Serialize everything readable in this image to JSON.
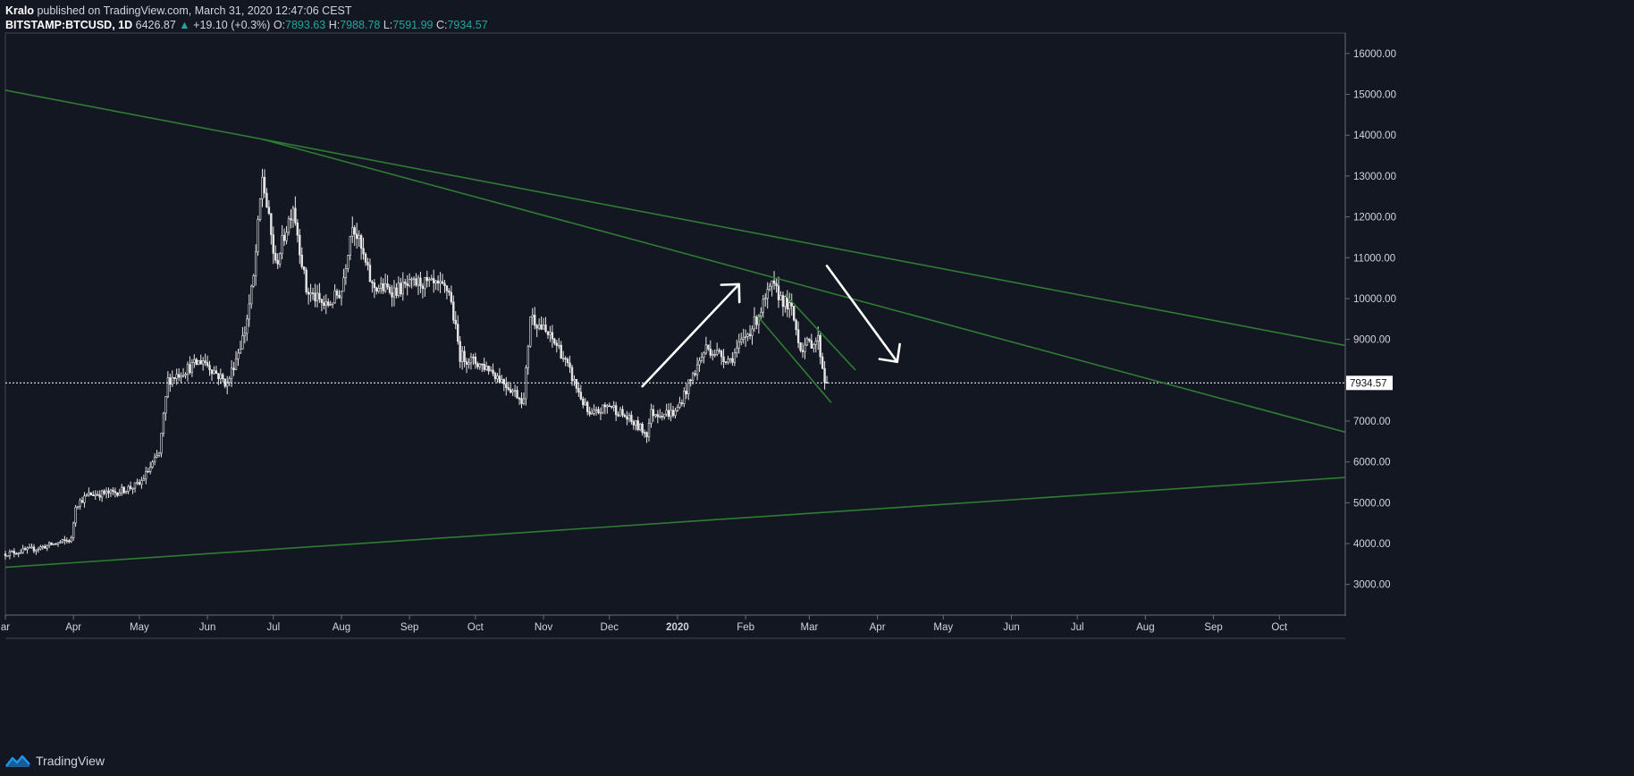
{
  "header": {
    "publisher": "Kralo",
    "published_text": "published on TradingView.com, March 31, 2020 12:47:06 CEST",
    "symbol": "BITSTAMP:BTCUSD, 1D",
    "last": "6426.87",
    "change": "+19.10 (+0.3%)",
    "o_label": "O:",
    "o": "7893.63",
    "h_label": "H:",
    "h": "7988.78",
    "l_label": "L:",
    "l": "7591.99",
    "c_label": "C:",
    "c": "7934.57"
  },
  "footer": {
    "brand": "TradingView"
  },
  "colors": {
    "background": "#131722",
    "candle": "#e6e6e6",
    "trendline": "#2e7d32",
    "arrow": "#ffffff",
    "price_line": "#ffffff",
    "accent_up": "#26a69a"
  },
  "chart_data": {
    "type": "candlestick",
    "title": "BITSTAMP:BTCUSD, 1D",
    "ylim": [
      2250,
      16500
    ],
    "yticks": [
      "16000.00",
      "15000.00",
      "14000.00",
      "13000.00",
      "12000.00",
      "11000.00",
      "10000.00",
      "9000.00",
      "8000.00",
      "7000.00",
      "6000.00",
      "5000.00",
      "4000.00",
      "3000.00"
    ],
    "ytick_values": [
      16000,
      15000,
      14000,
      13000,
      12000,
      11000,
      10000,
      9000,
      8000,
      7000,
      6000,
      5000,
      4000,
      3000
    ],
    "xlim": [
      "2019-03-01",
      "2020-10-31"
    ],
    "xticks": [
      {
        "label": "ar",
        "date": "2019-03-01"
      },
      {
        "label": "Apr",
        "date": "2019-04-01"
      },
      {
        "label": "May",
        "date": "2019-05-01"
      },
      {
        "label": "Jun",
        "date": "2019-06-01"
      },
      {
        "label": "Jul",
        "date": "2019-07-01"
      },
      {
        "label": "Aug",
        "date": "2019-08-01"
      },
      {
        "label": "Sep",
        "date": "2019-09-01"
      },
      {
        "label": "Oct",
        "date": "2019-10-01"
      },
      {
        "label": "Nov",
        "date": "2019-11-01"
      },
      {
        "label": "Dec",
        "date": "2019-12-01"
      },
      {
        "label": "2020",
        "date": "2020-01-01",
        "bold": true
      },
      {
        "label": "Feb",
        "date": "2020-02-01"
      },
      {
        "label": "Mar",
        "date": "2020-03-01"
      },
      {
        "label": "Apr",
        "date": "2020-04-01"
      },
      {
        "label": "May",
        "date": "2020-05-01"
      },
      {
        "label": "Jun",
        "date": "2020-06-01"
      },
      {
        "label": "Jul",
        "date": "2020-07-01"
      },
      {
        "label": "Aug",
        "date": "2020-08-01"
      },
      {
        "label": "Sep",
        "date": "2020-09-01"
      },
      {
        "label": "Oct",
        "date": "2020-10-01"
      }
    ],
    "price_anchors": [
      [
        "2019-03-01",
        3750
      ],
      [
        "2019-03-15",
        3880
      ],
      [
        "2019-03-31",
        4100
      ],
      [
        "2019-04-02",
        4950
      ],
      [
        "2019-04-08",
        5200
      ],
      [
        "2019-04-20",
        5250
      ],
      [
        "2019-05-01",
        5450
      ],
      [
        "2019-05-10",
        6200
      ],
      [
        "2019-05-14",
        8000
      ],
      [
        "2019-05-20",
        8200
      ],
      [
        "2019-05-30",
        8500
      ],
      [
        "2019-06-10",
        7900
      ],
      [
        "2019-06-18",
        9200
      ],
      [
        "2019-06-22",
        10500
      ],
      [
        "2019-06-26",
        13000
      ],
      [
        "2019-07-02",
        10800
      ],
      [
        "2019-07-10",
        12300
      ],
      [
        "2019-07-16",
        10200
      ],
      [
        "2019-07-25",
        9800
      ],
      [
        "2019-08-01",
        10200
      ],
      [
        "2019-08-06",
        11900
      ],
      [
        "2019-08-15",
        10300
      ],
      [
        "2019-08-25",
        10200
      ],
      [
        "2019-09-06",
        10400
      ],
      [
        "2019-09-19",
        10200
      ],
      [
        "2019-09-24",
        8600
      ],
      [
        "2019-10-07",
        8300
      ],
      [
        "2019-10-23",
        7500
      ],
      [
        "2019-10-26",
        9600
      ],
      [
        "2019-11-08",
        8800
      ],
      [
        "2019-11-22",
        7100
      ],
      [
        "2019-12-01",
        7400
      ],
      [
        "2019-12-18",
        6700
      ],
      [
        "2019-12-20",
        7200
      ],
      [
        "2019-12-31",
        7200
      ],
      [
        "2020-01-14",
        8800
      ],
      [
        "2020-01-25",
        8500
      ],
      [
        "2020-02-05",
        9400
      ],
      [
        "2020-02-13",
        10300
      ],
      [
        "2020-02-22",
        9700
      ],
      [
        "2020-02-26",
        8800
      ],
      [
        "2020-03-05",
        9000
      ],
      [
        "2020-03-08",
        8000
      ],
      [
        "2020-03-09",
        7934.57
      ]
    ],
    "last_price_label": "7934.57",
    "last_price": 7934.57,
    "trendlines": [
      {
        "from": [
          "2019-03-01",
          15100
        ],
        "to": [
          "2020-10-31",
          8850
        ]
      },
      {
        "from": [
          "2019-06-26",
          13900
        ],
        "to": [
          "2020-10-31",
          6730
        ]
      },
      {
        "from": [
          "2019-03-01",
          3420
        ],
        "to": [
          "2020-10-31",
          5620
        ]
      },
      {
        "from": [
          "2020-02-06",
          9600
        ],
        "to": [
          "2020-03-11",
          7450
        ]
      },
      {
        "from": [
          "2020-02-19",
          10100
        ],
        "to": [
          "2020-03-22",
          8250
        ]
      }
    ],
    "arrows": [
      {
        "from": [
          "2019-12-16",
          7850
        ],
        "to": [
          "2020-01-29",
          10350
        ]
      },
      {
        "from": [
          "2020-03-09",
          10800
        ],
        "to": [
          "2020-04-10",
          8450
        ]
      }
    ]
  }
}
